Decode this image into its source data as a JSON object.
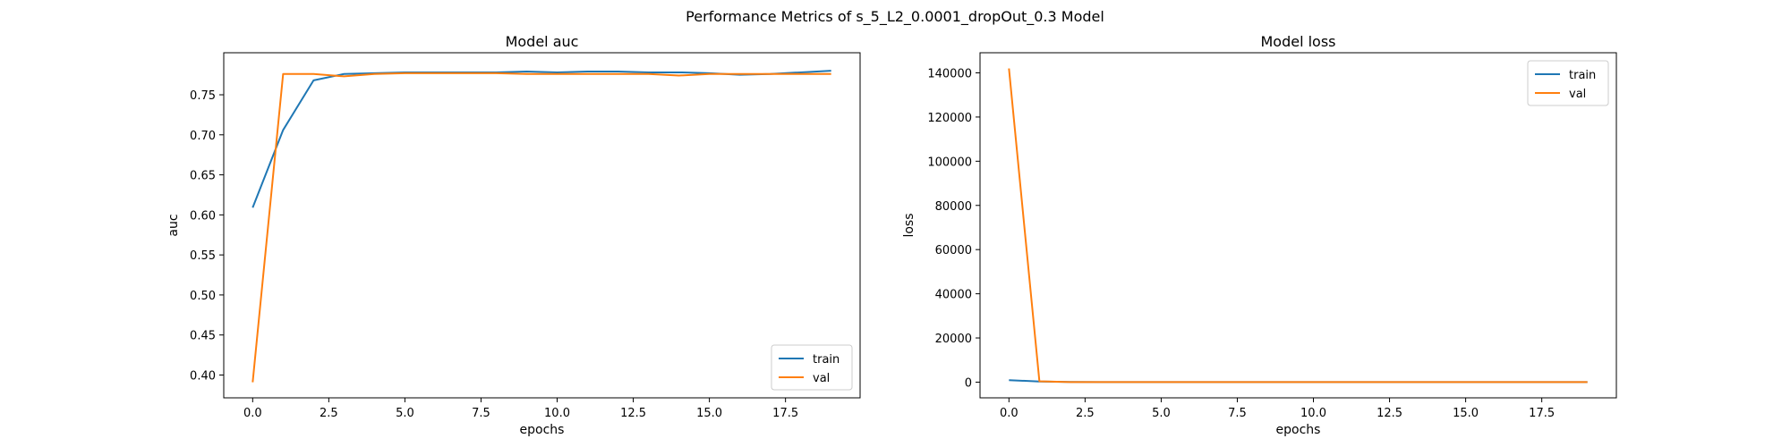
{
  "figure": {
    "suptitle": "Performance Metrics of s_5_L2_0.0001_dropOut_0.3 Model"
  },
  "colors": {
    "train": "#1f77b4",
    "val": "#ff7f0e",
    "axes": "#000000",
    "background": "#ffffff"
  },
  "chart_data": [
    {
      "type": "line",
      "title": "Model auc",
      "xlabel": "epochs",
      "ylabel": "auc",
      "xlim": [
        -0.95,
        19.95
      ],
      "ylim": [
        0.3715,
        0.8025
      ],
      "xticks": [
        0.0,
        2.5,
        5.0,
        7.5,
        10.0,
        12.5,
        15.0,
        17.5
      ],
      "xtick_labels": [
        "0.0",
        "2.5",
        "5.0",
        "7.5",
        "10.0",
        "12.5",
        "15.0",
        "17.5"
      ],
      "yticks": [
        0.4,
        0.45,
        0.5,
        0.55,
        0.6,
        0.65,
        0.7,
        0.75
      ],
      "ytick_labels": [
        "0.40",
        "0.45",
        "0.50",
        "0.55",
        "0.60",
        "0.65",
        "0.70",
        "0.75"
      ],
      "grid": false,
      "legend": "lower right",
      "x": [
        0,
        1,
        2,
        3,
        4,
        5,
        6,
        7,
        8,
        9,
        10,
        11,
        12,
        13,
        14,
        15,
        16,
        17,
        18,
        19
      ],
      "series": [
        {
          "name": "train",
          "color": "#1f77b4",
          "values": [
            0.609,
            0.706,
            0.768,
            0.776,
            0.777,
            0.778,
            0.778,
            0.778,
            0.778,
            0.779,
            0.778,
            0.779,
            0.779,
            0.778,
            0.778,
            0.777,
            0.775,
            0.776,
            0.778,
            0.78
          ]
        },
        {
          "name": "val",
          "color": "#ff7f0e",
          "values": [
            0.391,
            0.776,
            0.776,
            0.773,
            0.776,
            0.777,
            0.777,
            0.777,
            0.777,
            0.776,
            0.776,
            0.776,
            0.776,
            0.776,
            0.774,
            0.776,
            0.776,
            0.776,
            0.776,
            0.776
          ]
        }
      ]
    },
    {
      "type": "line",
      "title": "Model loss",
      "xlabel": "epochs",
      "ylabel": "loss",
      "xlim": [
        -0.95,
        19.95
      ],
      "ylim": [
        -7100,
        149100
      ],
      "xticks": [
        0.0,
        2.5,
        5.0,
        7.5,
        10.0,
        12.5,
        15.0,
        17.5
      ],
      "xtick_labels": [
        "0.0",
        "2.5",
        "5.0",
        "7.5",
        "10.0",
        "12.5",
        "15.0",
        "17.5"
      ],
      "yticks": [
        0,
        20000,
        40000,
        60000,
        80000,
        100000,
        120000,
        140000
      ],
      "ytick_labels": [
        "0",
        "20000",
        "40000",
        "60000",
        "80000",
        "100000",
        "120000",
        "140000"
      ],
      "grid": false,
      "legend": "upper right",
      "x": [
        0,
        1,
        2,
        3,
        4,
        5,
        6,
        7,
        8,
        9,
        10,
        11,
        12,
        13,
        14,
        15,
        16,
        17,
        18,
        19
      ],
      "series": [
        {
          "name": "train",
          "color": "#1f77b4",
          "values": [
            900,
            300,
            100,
            50,
            30,
            20,
            20,
            10,
            10,
            10,
            10,
            10,
            10,
            10,
            10,
            10,
            10,
            10,
            10,
            10
          ]
        },
        {
          "name": "val",
          "color": "#ff7f0e",
          "values": [
            142000,
            400,
            50,
            30,
            20,
            10,
            10,
            10,
            10,
            10,
            10,
            10,
            10,
            10,
            10,
            10,
            10,
            10,
            10,
            10
          ]
        }
      ]
    }
  ]
}
